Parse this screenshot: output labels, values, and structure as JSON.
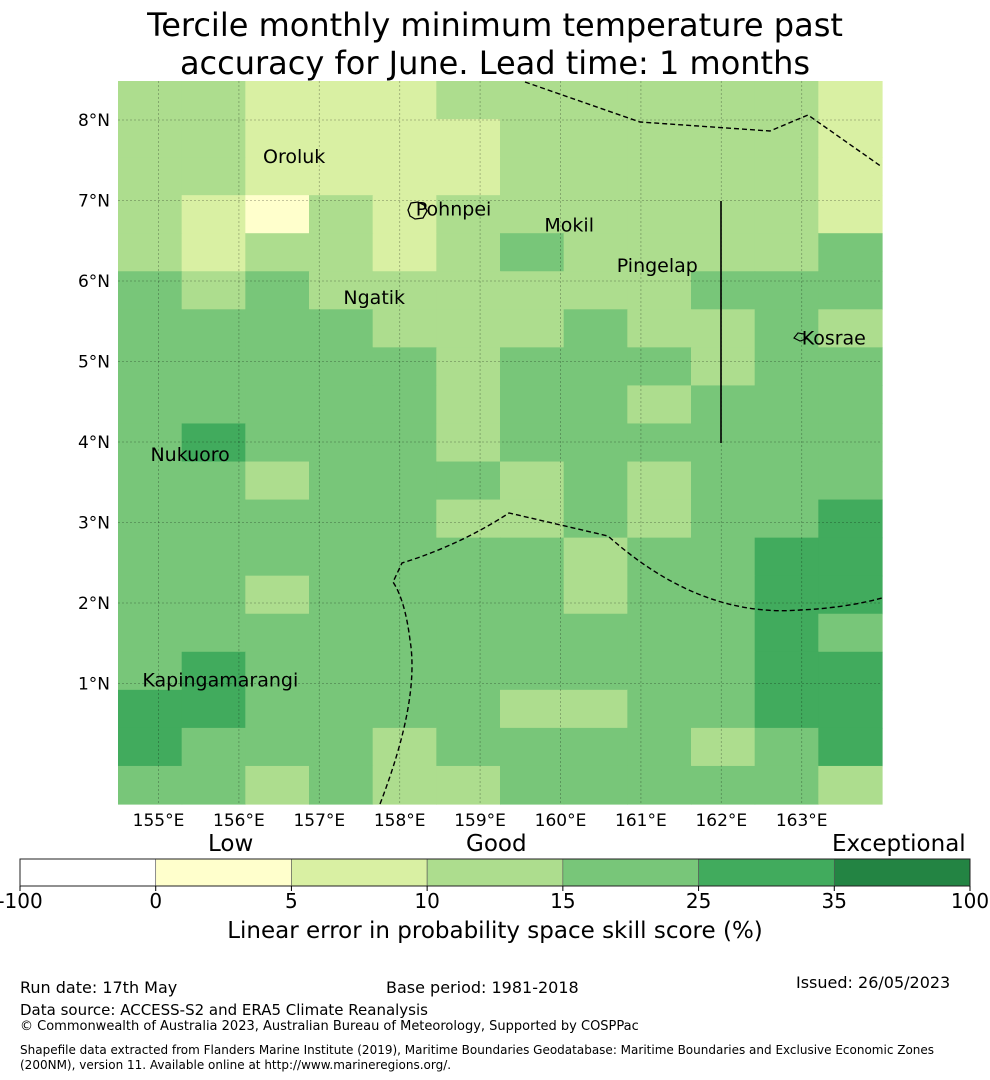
{
  "title_line1": "Tercile monthly minimum temperature past",
  "title_line2": "accuracy for June. Lead time: 1 months",
  "map": {
    "lon_labels": [
      "155°E",
      "156°E",
      "157°E",
      "158°E",
      "159°E",
      "160°E",
      "161°E",
      "162°E",
      "163°E"
    ],
    "lat_labels": [
      "8°N",
      "7°N",
      "6°N",
      "5°N",
      "4°N",
      "3°N",
      "2°N",
      "1°N"
    ],
    "places": [
      {
        "name": "Oroluk",
        "lon": 156.3,
        "lat": 7.55
      },
      {
        "name": "Pohnpei",
        "lon": 158.2,
        "lat": 6.9
      },
      {
        "name": "Mokil",
        "lon": 159.8,
        "lat": 6.7
      },
      {
        "name": "Pingelap",
        "lon": 160.7,
        "lat": 6.2
      },
      {
        "name": "Ngatik",
        "lon": 157.3,
        "lat": 5.8
      },
      {
        "name": "Kosrae",
        "lon": 163.0,
        "lat": 5.3
      },
      {
        "name": "Nukuoro",
        "lon": 154.9,
        "lat": 3.85
      },
      {
        "name": "Kapingamarangi",
        "lon": 154.8,
        "lat": 1.05
      }
    ],
    "grid_skill_category": [
      [
        3,
        3,
        2,
        2,
        2,
        3,
        3,
        3,
        3,
        3,
        3,
        2
      ],
      [
        3,
        3,
        2,
        2,
        2,
        2,
        3,
        3,
        3,
        3,
        3,
        2
      ],
      [
        3,
        3,
        2,
        2,
        2,
        2,
        3,
        3,
        3,
        3,
        3,
        2
      ],
      [
        3,
        2,
        1,
        3,
        2,
        3,
        3,
        3,
        3,
        3,
        3,
        2
      ],
      [
        3,
        2,
        3,
        3,
        2,
        3,
        4,
        3,
        3,
        3,
        3,
        4
      ],
      [
        4,
        3,
        4,
        3,
        3,
        3,
        3,
        3,
        3,
        4,
        4,
        4
      ],
      [
        4,
        4,
        4,
        4,
        3,
        3,
        3,
        4,
        3,
        3,
        4,
        3
      ],
      [
        4,
        4,
        4,
        4,
        4,
        3,
        4,
        4,
        4,
        3,
        4,
        4
      ],
      [
        4,
        4,
        4,
        4,
        4,
        3,
        4,
        4,
        3,
        4,
        4,
        4
      ],
      [
        4,
        5,
        4,
        4,
        4,
        3,
        4,
        4,
        4,
        4,
        4,
        4
      ],
      [
        4,
        4,
        3,
        4,
        4,
        4,
        3,
        4,
        3,
        4,
        4,
        4
      ],
      [
        4,
        4,
        4,
        4,
        4,
        3,
        3,
        4,
        3,
        4,
        4,
        5
      ],
      [
        4,
        4,
        4,
        4,
        4,
        4,
        4,
        3,
        4,
        4,
        5,
        5
      ],
      [
        4,
        4,
        3,
        4,
        4,
        4,
        4,
        3,
        4,
        4,
        5,
        5
      ],
      [
        4,
        4,
        4,
        4,
        4,
        4,
        4,
        4,
        4,
        4,
        5,
        4
      ],
      [
        4,
        5,
        4,
        4,
        4,
        4,
        4,
        4,
        4,
        4,
        5,
        5
      ],
      [
        5,
        5,
        4,
        4,
        4,
        4,
        3,
        3,
        4,
        4,
        5,
        5
      ],
      [
        5,
        4,
        4,
        4,
        3,
        4,
        4,
        4,
        4,
        3,
        4,
        5
      ],
      [
        4,
        4,
        3,
        4,
        3,
        3,
        4,
        4,
        4,
        4,
        4,
        3
      ]
    ]
  },
  "colorbar": {
    "ticks": [
      "-100",
      "0",
      "5",
      "10",
      "15",
      "25",
      "35",
      "100"
    ],
    "colors": [
      "#ffffff",
      "#ffffcc",
      "#d9f0a3",
      "#addd8e",
      "#78c679",
      "#41ab5d",
      "#238443"
    ],
    "category_labels": {
      "low": "Low",
      "good": "Good",
      "exceptional": "Exceptional"
    },
    "label": "Linear error in probability space skill score (%)"
  },
  "footer": {
    "run_date": "Run date: 17th May",
    "base_period": "Base period: 1981-2018",
    "issued": "Issued: 26/05/2023",
    "data_source": "Data source: ACCESS-S2 and ERA5 Climate Reanalysis",
    "copyright": "© Commonwealth of Australia 2023, Australian Bureau of Meteorology, Supported by COSPPac",
    "shapefile_line1": "Shapefile data extracted from Flanders Marine Institute (2019), Maritime Boundaries Geodatabase: Maritime Boundaries and Exclusive Economic Zones",
    "shapefile_line2": "(200NM), version 11. Available online at http://www.marineregions.org/."
  }
}
